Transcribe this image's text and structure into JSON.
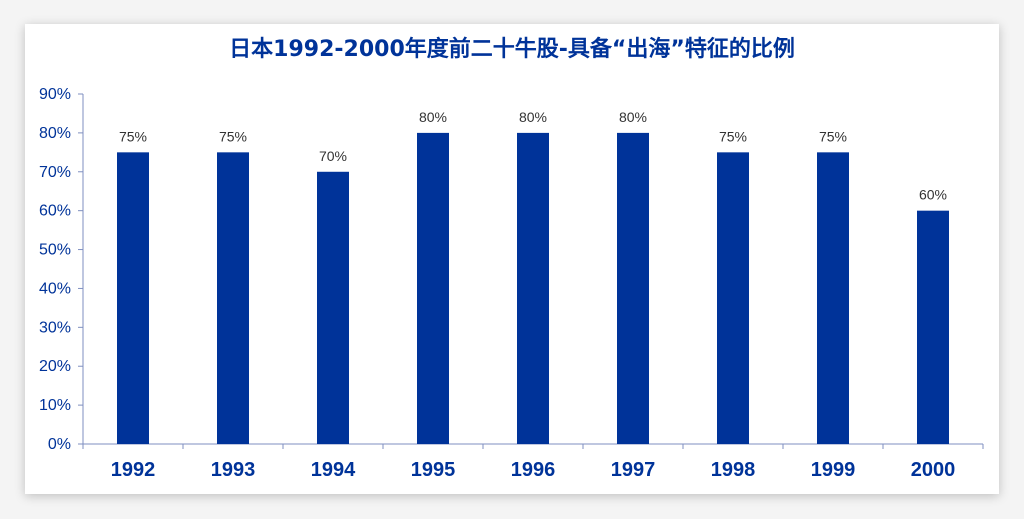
{
  "chart_data": {
    "type": "bar",
    "title": "日本1992-2000年度前二十牛股-具备“出海”特征的比例",
    "categories": [
      "1992",
      "1993",
      "1994",
      "1995",
      "1996",
      "1997",
      "1998",
      "1999",
      "2000"
    ],
    "values": [
      75,
      75,
      70,
      80,
      80,
      80,
      75,
      75,
      60
    ],
    "data_labels": [
      "75%",
      "75%",
      "70%",
      "80%",
      "80%",
      "80%",
      "75%",
      "75%",
      "60%"
    ],
    "y_ticks": [
      "0%",
      "10%",
      "20%",
      "30%",
      "40%",
      "50%",
      "60%",
      "70%",
      "80%",
      "90%"
    ],
    "ylim": [
      0,
      90
    ],
    "xlabel": "",
    "ylabel": "",
    "grid": false,
    "legend": "none",
    "bar_color": "#003399",
    "axis_color": "#7f8fc0"
  }
}
